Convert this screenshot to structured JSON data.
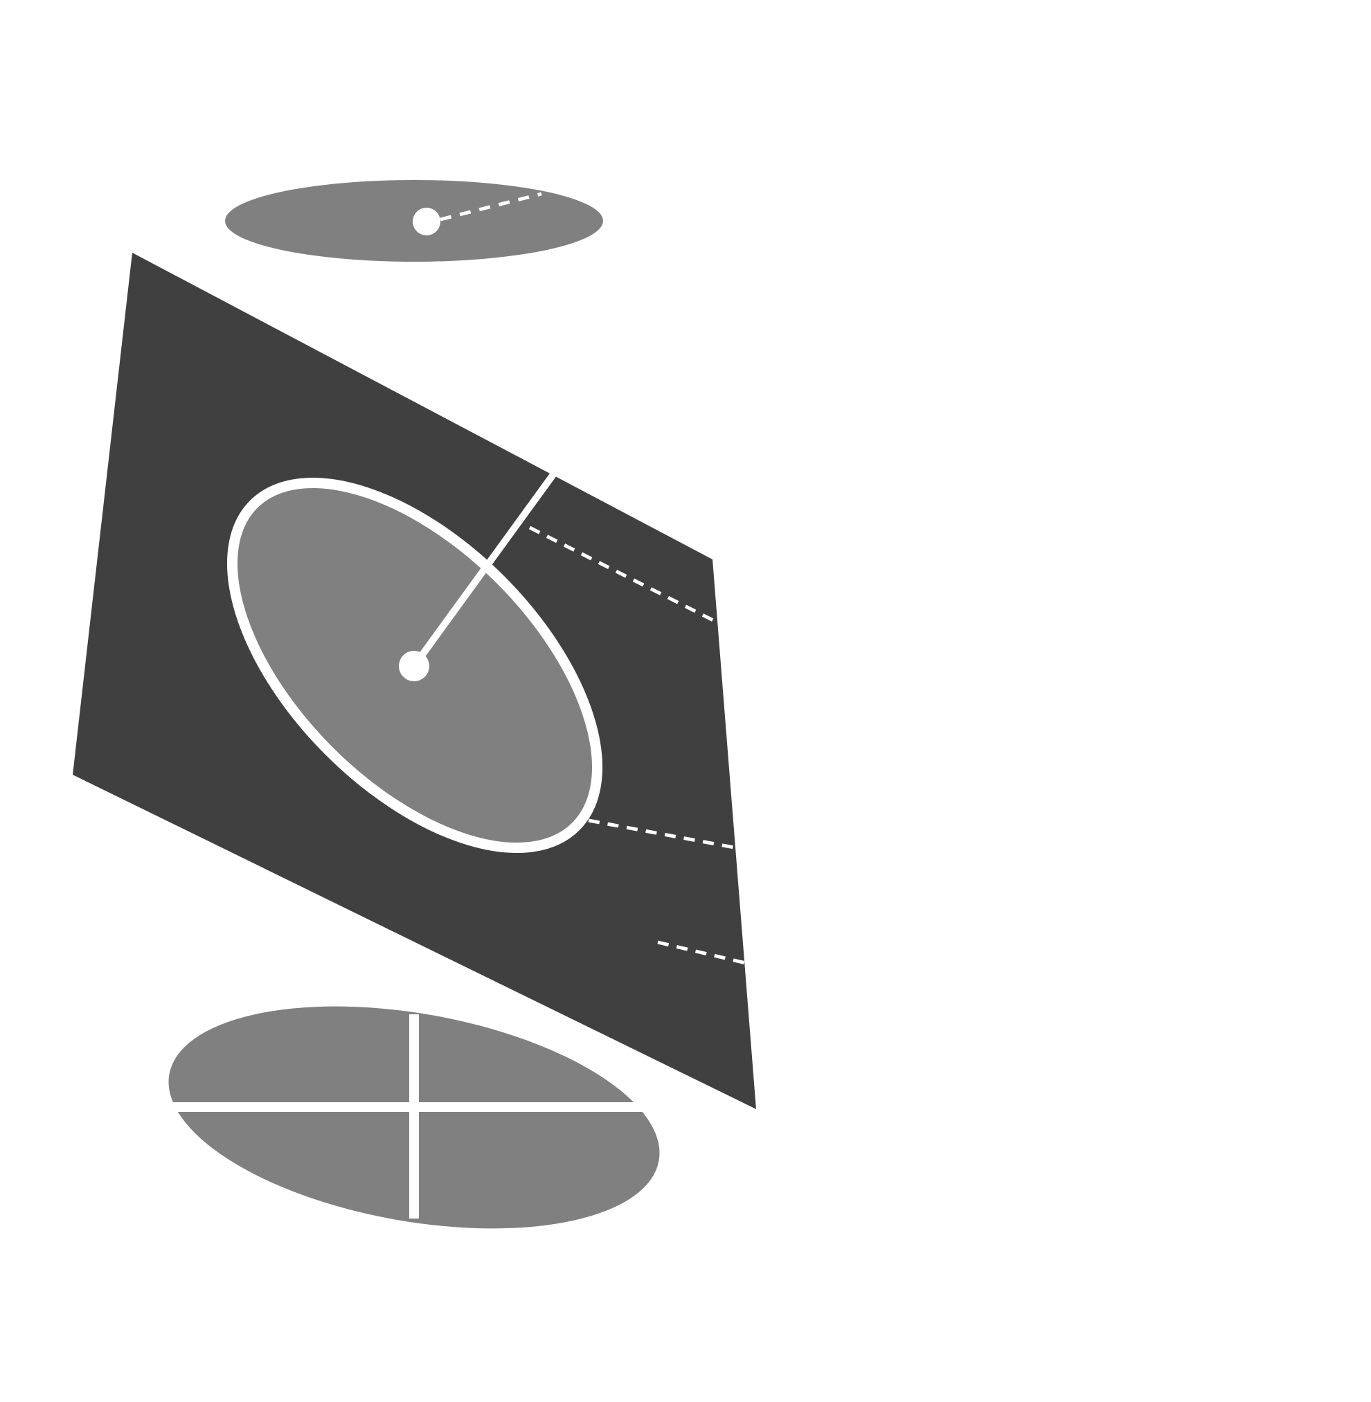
{
  "diagram": {
    "colors": {
      "background": "#ffffff",
      "plane": "#404040",
      "disc": "#808080",
      "marker": "#ffffff"
    },
    "parts": [
      "top-disc",
      "inclined-plane",
      "tilted-disc",
      "bottom-disc"
    ]
  }
}
